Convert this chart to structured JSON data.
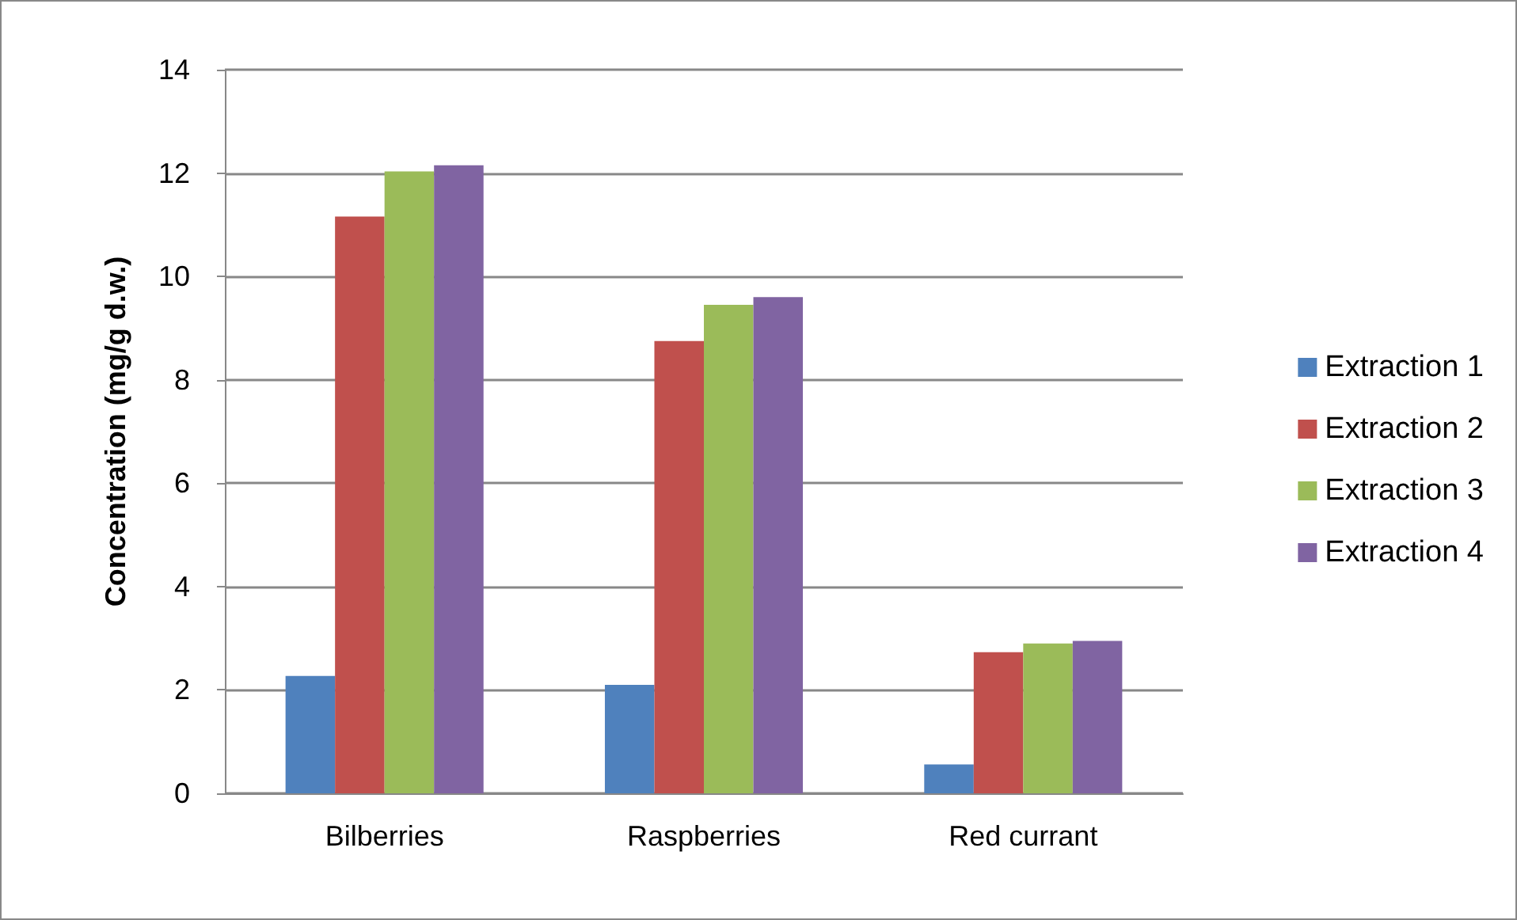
{
  "chart_data": {
    "type": "bar",
    "ylabel": "Concentration (mg/g d.w.)",
    "categories": [
      "Bilberries",
      "Raspberries",
      "Red currant"
    ],
    "series": [
      {
        "name": "Extraction 1",
        "color": "#4f81bd",
        "values": [
          2.27,
          2.1,
          0.56
        ]
      },
      {
        "name": "Extraction 2",
        "color": "#c0504d",
        "values": [
          11.16,
          8.75,
          2.73
        ]
      },
      {
        "name": "Extraction 3",
        "color": "#9bbb59",
        "values": [
          12.03,
          9.45,
          2.9
        ]
      },
      {
        "name": "Extraction 4",
        "color": "#8064a2",
        "values": [
          12.15,
          9.6,
          2.95
        ]
      }
    ],
    "ylim": [
      0,
      14
    ],
    "yticks": [
      0,
      2,
      4,
      6,
      8,
      10,
      12,
      14
    ],
    "grid": "y",
    "legend": "right"
  }
}
